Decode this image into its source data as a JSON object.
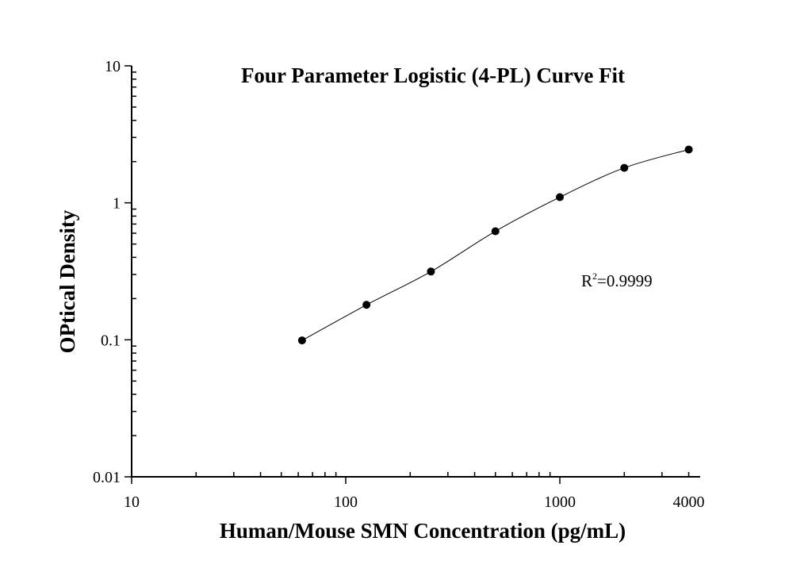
{
  "chart_data": {
    "type": "scatter",
    "title": "Four Parameter Logistic (4-PL) Curve Fit",
    "xlabel": "Human/Mouse SMN Concentration (pg/mL)",
    "ylabel": "OPtical Density",
    "xscale": "log",
    "yscale": "log",
    "xlim": [
      10,
      4500
    ],
    "ylim": [
      0.01,
      10
    ],
    "xticks": [
      10,
      100,
      1000,
      4000
    ],
    "xtick_labels": [
      "10",
      "100",
      "1000",
      "4000"
    ],
    "yticks": [
      0.01,
      0.1,
      1,
      10
    ],
    "ytick_labels": [
      "0.01",
      "0.1",
      "1",
      "10"
    ],
    "grid": false,
    "series": [
      {
        "x": [
          62.5,
          125,
          250,
          500,
          1000,
          2000,
          4000
        ],
        "y": [
          0.099,
          0.18,
          0.315,
          0.62,
          1.1,
          1.8,
          2.45
        ],
        "marker": "circle",
        "fit_line": "4-PL curve"
      }
    ],
    "annotation": {
      "prefix": "R",
      "superscript": "2",
      "text": "=0.9999"
    },
    "colors": {
      "points": "#000000",
      "line": "#000000"
    }
  }
}
